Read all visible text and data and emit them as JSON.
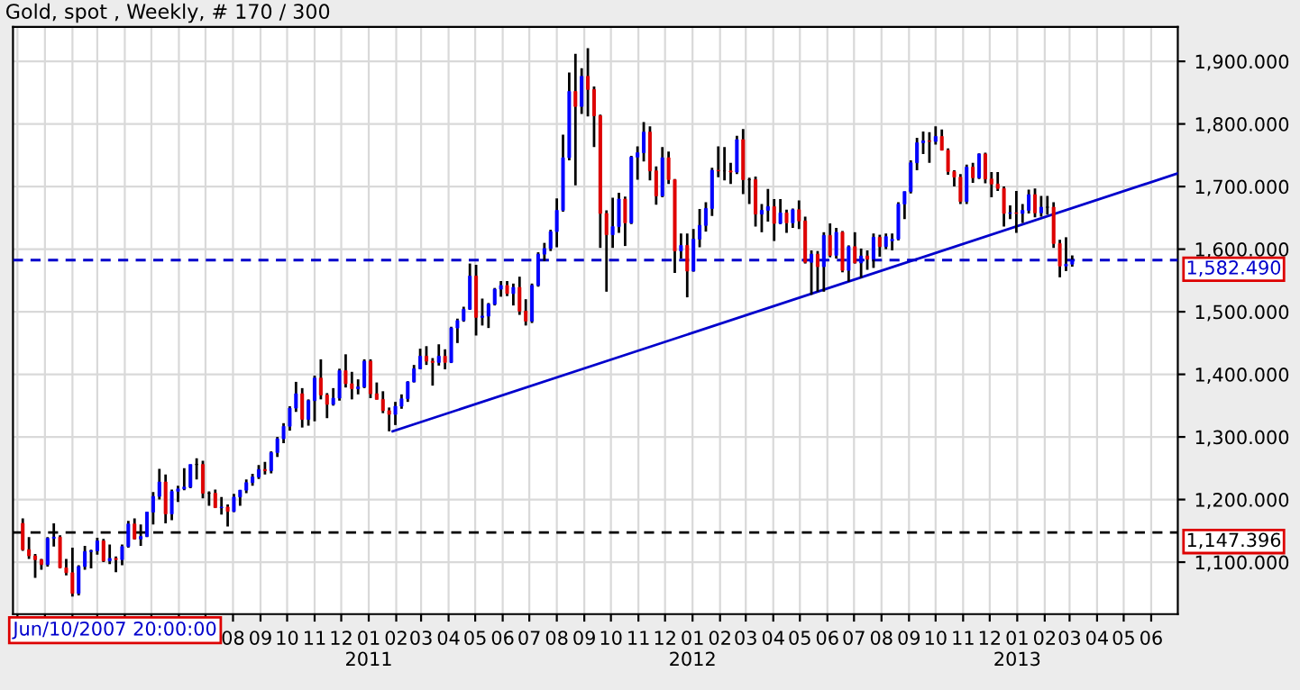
{
  "chart_data": {
    "type": "candlestick",
    "title": "Gold, spot , Weekly, # 170 / 300",
    "x": [
      "2009-12-07",
      "2009-12-14",
      "2009-12-21",
      "2009-12-28",
      "2010-01-04",
      "2010-01-11",
      "2010-01-18",
      "2010-01-25",
      "2010-02-01",
      "2010-02-08",
      "2010-02-15",
      "2010-02-22",
      "2010-03-01",
      "2010-03-08",
      "2010-03-15",
      "2010-03-22",
      "2010-03-29",
      "2010-04-05",
      "2010-04-12",
      "2010-04-19",
      "2010-04-26",
      "2010-05-03",
      "2010-05-10",
      "2010-05-17",
      "2010-05-24",
      "2010-05-31",
      "2010-06-07",
      "2010-06-14",
      "2010-06-21",
      "2010-06-28",
      "2010-07-05",
      "2010-07-12",
      "2010-07-19",
      "2010-07-26",
      "2010-08-02",
      "2010-08-09",
      "2010-08-16",
      "2010-08-23",
      "2010-08-30",
      "2010-09-06",
      "2010-09-13",
      "2010-09-20",
      "2010-09-27",
      "2010-10-04",
      "2010-10-11",
      "2010-10-18",
      "2010-10-25",
      "2010-11-01",
      "2010-11-08",
      "2010-11-15",
      "2010-11-22",
      "2010-11-29",
      "2010-12-06",
      "2010-12-13",
      "2010-12-20",
      "2010-12-27",
      "2011-01-03",
      "2011-01-10",
      "2011-01-17",
      "2011-01-24",
      "2011-01-31",
      "2011-02-07",
      "2011-02-14",
      "2011-02-21",
      "2011-02-28",
      "2011-03-07",
      "2011-03-14",
      "2011-03-21",
      "2011-03-28",
      "2011-04-04",
      "2011-04-11",
      "2011-04-18",
      "2011-04-25",
      "2011-05-02",
      "2011-05-09",
      "2011-05-16",
      "2011-05-23",
      "2011-05-30",
      "2011-06-06",
      "2011-06-13",
      "2011-06-20",
      "2011-06-27",
      "2011-07-04",
      "2011-07-11",
      "2011-07-18",
      "2011-07-25",
      "2011-08-01",
      "2011-08-08",
      "2011-08-15",
      "2011-08-22",
      "2011-08-29",
      "2011-09-05",
      "2011-09-12",
      "2011-09-19",
      "2011-09-26",
      "2011-10-03",
      "2011-10-10",
      "2011-10-17",
      "2011-10-24",
      "2011-10-31",
      "2011-11-07",
      "2011-11-14",
      "2011-11-21",
      "2011-11-28",
      "2011-12-05",
      "2011-12-12",
      "2011-12-19",
      "2011-12-26",
      "2012-01-02",
      "2012-01-09",
      "2012-01-16",
      "2012-01-23",
      "2012-01-30",
      "2012-02-06",
      "2012-02-13",
      "2012-02-20",
      "2012-02-27",
      "2012-03-05",
      "2012-03-12",
      "2012-03-19",
      "2012-03-26",
      "2012-04-02",
      "2012-04-09",
      "2012-04-16",
      "2012-04-23",
      "2012-04-30",
      "2012-05-07",
      "2012-05-14",
      "2012-05-21",
      "2012-05-28",
      "2012-06-04",
      "2012-06-11",
      "2012-06-18",
      "2012-06-25",
      "2012-07-02",
      "2012-07-09",
      "2012-07-16",
      "2012-07-23",
      "2012-07-30",
      "2012-08-06",
      "2012-08-13",
      "2012-08-20",
      "2012-08-27",
      "2012-09-03",
      "2012-09-10",
      "2012-09-17",
      "2012-09-24",
      "2012-10-01",
      "2012-10-08",
      "2012-10-15",
      "2012-10-22",
      "2012-10-29",
      "2012-11-05",
      "2012-11-12",
      "2012-11-19",
      "2012-11-26",
      "2012-12-03",
      "2012-12-10",
      "2012-12-17",
      "2012-12-24",
      "2012-12-31",
      "2013-01-07",
      "2013-01-14",
      "2013-01-21",
      "2013-01-28",
      "2013-02-04",
      "2013-02-11",
      "2013-02-18",
      "2013-02-25",
      "2013-03-04"
    ],
    "ohlc": [
      [
        1162,
        1170,
        1118,
        1120
      ],
      [
        1120,
        1140,
        1105,
        1110
      ],
      [
        1110,
        1113,
        1075,
        1104
      ],
      [
        1104,
        1105,
        1088,
        1096
      ],
      [
        1096,
        1140,
        1093,
        1138
      ],
      [
        1138,
        1162,
        1125,
        1140
      ],
      [
        1140,
        1143,
        1090,
        1091
      ],
      [
        1091,
        1105,
        1079,
        1083
      ],
      [
        1083,
        1123,
        1045,
        1050
      ],
      [
        1050,
        1095,
        1047,
        1093
      ],
      [
        1093,
        1126,
        1088,
        1117
      ],
      [
        1117,
        1120,
        1090,
        1118
      ],
      [
        1118,
        1139,
        1112,
        1134
      ],
      [
        1134,
        1137,
        1100,
        1102
      ],
      [
        1102,
        1128,
        1097,
        1106
      ],
      [
        1106,
        1109,
        1084,
        1104
      ],
      [
        1104,
        1128,
        1095,
        1125
      ],
      [
        1125,
        1166,
        1123,
        1161
      ],
      [
        1161,
        1170,
        1136,
        1137
      ],
      [
        1137,
        1160,
        1126,
        1141
      ],
      [
        1141,
        1180,
        1140,
        1180
      ],
      [
        1180,
        1212,
        1160,
        1205
      ],
      [
        1205,
        1249,
        1200,
        1228
      ],
      [
        1228,
        1240,
        1162,
        1177
      ],
      [
        1177,
        1216,
        1167,
        1213
      ],
      [
        1213,
        1222,
        1196,
        1217
      ],
      [
        1217,
        1250,
        1215,
        1220
      ],
      [
        1220,
        1256,
        1218,
        1256
      ],
      [
        1256,
        1266,
        1232,
        1256
      ],
      [
        1256,
        1262,
        1202,
        1210
      ],
      [
        1210,
        1213,
        1190,
        1210
      ],
      [
        1210,
        1216,
        1187,
        1187
      ],
      [
        1187,
        1204,
        1176,
        1188
      ],
      [
        1188,
        1192,
        1157,
        1181
      ],
      [
        1181,
        1209,
        1180,
        1204
      ],
      [
        1204,
        1215,
        1190,
        1215
      ],
      [
        1215,
        1232,
        1210,
        1227
      ],
      [
        1227,
        1241,
        1222,
        1236
      ],
      [
        1236,
        1255,
        1233,
        1248
      ],
      [
        1248,
        1260,
        1240,
        1246
      ],
      [
        1246,
        1277,
        1242,
        1275
      ],
      [
        1275,
        1300,
        1268,
        1297
      ],
      [
        1297,
        1322,
        1290,
        1317
      ],
      [
        1317,
        1349,
        1310,
        1346
      ],
      [
        1346,
        1388,
        1340,
        1369
      ],
      [
        1369,
        1378,
        1315,
        1328
      ],
      [
        1328,
        1360,
        1318,
        1358
      ],
      [
        1358,
        1398,
        1325,
        1394
      ],
      [
        1394,
        1424,
        1360,
        1367
      ],
      [
        1367,
        1370,
        1330,
        1352
      ],
      [
        1352,
        1378,
        1350,
        1362
      ],
      [
        1362,
        1409,
        1358,
        1406
      ],
      [
        1406,
        1432,
        1379,
        1385
      ],
      [
        1385,
        1404,
        1360,
        1377
      ],
      [
        1377,
        1392,
        1368,
        1380
      ],
      [
        1380,
        1424,
        1378,
        1421
      ],
      [
        1421,
        1424,
        1362,
        1369
      ],
      [
        1369,
        1387,
        1360,
        1360
      ],
      [
        1360,
        1373,
        1338,
        1342
      ],
      [
        1342,
        1347,
        1309,
        1336
      ],
      [
        1336,
        1356,
        1319,
        1349
      ],
      [
        1349,
        1368,
        1345,
        1361
      ],
      [
        1361,
        1389,
        1356,
        1388
      ],
      [
        1388,
        1415,
        1387,
        1409
      ],
      [
        1409,
        1441,
        1408,
        1429
      ],
      [
        1429,
        1445,
        1415,
        1421
      ],
      [
        1421,
        1426,
        1382,
        1419
      ],
      [
        1419,
        1448,
        1414,
        1429
      ],
      [
        1429,
        1440,
        1408,
        1419
      ],
      [
        1419,
        1476,
        1418,
        1474
      ],
      [
        1474,
        1489,
        1450,
        1486
      ],
      [
        1486,
        1508,
        1484,
        1504
      ],
      [
        1504,
        1577,
        1503,
        1557
      ],
      [
        1557,
        1575,
        1462,
        1491
      ],
      [
        1491,
        1521,
        1478,
        1493
      ],
      [
        1493,
        1514,
        1474,
        1512
      ],
      [
        1512,
        1538,
        1510,
        1536
      ],
      [
        1536,
        1549,
        1524,
        1542
      ],
      [
        1542,
        1549,
        1525,
        1529
      ],
      [
        1529,
        1545,
        1510,
        1539
      ],
      [
        1539,
        1556,
        1495,
        1501
      ],
      [
        1501,
        1520,
        1478,
        1485
      ],
      [
        1485,
        1545,
        1482,
        1542
      ],
      [
        1542,
        1595,
        1540,
        1592
      ],
      [
        1592,
        1610,
        1581,
        1601
      ],
      [
        1601,
        1631,
        1597,
        1628
      ],
      [
        1628,
        1681,
        1603,
        1662
      ],
      [
        1662,
        1783,
        1660,
        1746
      ],
      [
        1746,
        1882,
        1742,
        1852
      ],
      [
        1852,
        1912,
        1702,
        1828
      ],
      [
        1828,
        1889,
        1816,
        1876
      ],
      [
        1876,
        1921,
        1812,
        1855
      ],
      [
        1855,
        1860,
        1763,
        1813
      ],
      [
        1813,
        1815,
        1602,
        1657
      ],
      [
        1657,
        1662,
        1532,
        1623
      ],
      [
        1623,
        1682,
        1602,
        1636
      ],
      [
        1636,
        1690,
        1626,
        1680
      ],
      [
        1680,
        1684,
        1605,
        1642
      ],
      [
        1642,
        1749,
        1640,
        1747
      ],
      [
        1747,
        1764,
        1711,
        1754
      ],
      [
        1754,
        1803,
        1740,
        1787
      ],
      [
        1787,
        1796,
        1710,
        1725
      ],
      [
        1725,
        1732,
        1671,
        1685
      ],
      [
        1685,
        1763,
        1683,
        1746
      ],
      [
        1746,
        1756,
        1704,
        1711
      ],
      [
        1711,
        1712,
        1562,
        1597
      ],
      [
        1597,
        1625,
        1585,
        1606
      ],
      [
        1606,
        1625,
        1523,
        1565
      ],
      [
        1565,
        1632,
        1564,
        1616
      ],
      [
        1616,
        1664,
        1603,
        1638
      ],
      [
        1638,
        1675,
        1628,
        1665
      ],
      [
        1665,
        1730,
        1653,
        1726
      ],
      [
        1726,
        1764,
        1715,
        1725
      ],
      [
        1725,
        1763,
        1710,
        1725
      ],
      [
        1725,
        1738,
        1704,
        1723
      ],
      [
        1723,
        1781,
        1720,
        1775
      ],
      [
        1775,
        1792,
        1688,
        1711
      ],
      [
        1711,
        1714,
        1672,
        1711
      ],
      [
        1711,
        1716,
        1636,
        1656
      ],
      [
        1656,
        1672,
        1627,
        1662
      ],
      [
        1662,
        1696,
        1644,
        1668
      ],
      [
        1668,
        1680,
        1613,
        1641
      ],
      [
        1641,
        1680,
        1640,
        1658
      ],
      [
        1658,
        1663,
        1626,
        1642
      ],
      [
        1642,
        1665,
        1634,
        1663
      ],
      [
        1663,
        1678,
        1632,
        1645
      ],
      [
        1645,
        1652,
        1577,
        1579
      ],
      [
        1579,
        1598,
        1527,
        1592
      ],
      [
        1592,
        1597,
        1532,
        1572
      ],
      [
        1572,
        1627,
        1532,
        1622
      ],
      [
        1622,
        1641,
        1587,
        1590
      ],
      [
        1590,
        1634,
        1585,
        1627
      ],
      [
        1627,
        1629,
        1563,
        1566
      ],
      [
        1566,
        1606,
        1548,
        1604
      ],
      [
        1604,
        1627,
        1577,
        1578
      ],
      [
        1578,
        1601,
        1554,
        1589
      ],
      [
        1589,
        1598,
        1567,
        1584
      ],
      [
        1584,
        1625,
        1570,
        1619
      ],
      [
        1619,
        1623,
        1588,
        1604
      ],
      [
        1604,
        1625,
        1600,
        1620
      ],
      [
        1613,
        1625,
        1598,
        1616
      ],
      [
        1616,
        1675,
        1614,
        1672
      ],
      [
        1672,
        1692,
        1648,
        1692
      ],
      [
        1692,
        1742,
        1689,
        1738
      ],
      [
        1738,
        1778,
        1726,
        1770
      ],
      [
        1770,
        1788,
        1752,
        1773
      ],
      [
        1773,
        1787,
        1738,
        1772
      ],
      [
        1772,
        1796,
        1767,
        1780
      ],
      [
        1780,
        1791,
        1758,
        1758
      ],
      [
        1758,
        1761,
        1719,
        1724
      ],
      [
        1724,
        1726,
        1700,
        1715
      ],
      [
        1715,
        1720,
        1672,
        1676
      ],
      [
        1676,
        1735,
        1672,
        1731
      ],
      [
        1731,
        1738,
        1706,
        1714
      ],
      [
        1714,
        1753,
        1712,
        1752
      ],
      [
        1752,
        1754,
        1705,
        1712
      ],
      [
        1712,
        1723,
        1683,
        1704
      ],
      [
        1704,
        1723,
        1693,
        1697
      ],
      [
        1697,
        1700,
        1636,
        1657
      ],
      [
        1657,
        1670,
        1648,
        1658
      ],
      [
        1658,
        1693,
        1626,
        1657
      ],
      [
        1657,
        1672,
        1642,
        1662
      ],
      [
        1662,
        1695,
        1657,
        1687
      ],
      [
        1687,
        1697,
        1651,
        1658
      ],
      [
        1658,
        1685,
        1652,
        1667
      ],
      [
        1667,
        1685,
        1655,
        1667
      ],
      [
        1667,
        1675,
        1602,
        1609
      ],
      [
        1609,
        1615,
        1555,
        1573
      ],
      [
        1573,
        1619,
        1565,
        1576
      ],
      [
        1576,
        1590,
        1572,
        1582.49
      ]
    ],
    "series": [
      {
        "type": "line",
        "color": "#0000cc",
        "x": [
          "2011-01-28",
          "2013-07-01"
        ],
        "values": [
          1309,
          1721
        ]
      }
    ],
    "ylim": [
      1017,
      1955
    ],
    "yticks": [
      {
        "value": 1100,
        "label": "1,100.000"
      },
      {
        "value": 1200,
        "label": "1,200.000"
      },
      {
        "value": 1300,
        "label": "1,300.000"
      },
      {
        "value": 1400,
        "label": "1,400.000"
      },
      {
        "value": 1500,
        "label": "1,500.000"
      },
      {
        "value": 1600,
        "label": "1,600.000"
      },
      {
        "value": 1700,
        "label": "1,700.000"
      },
      {
        "value": 1800,
        "label": "1,800.000"
      },
      {
        "value": 1900,
        "label": "1,900.000"
      }
    ],
    "xlim": [
      "2009-11-26",
      "2013-07-01"
    ],
    "xticks": [
      {
        "value": "2009-12-01",
        "label": null
      },
      {
        "value": "2010-01-01",
        "label": null
      },
      {
        "value": "2010-02-01",
        "label": null
      },
      {
        "value": "2010-03-01",
        "label": null
      },
      {
        "value": "2010-04-01",
        "label": null
      },
      {
        "value": "2010-05-01",
        "label": null
      },
      {
        "value": "2010-06-01",
        "label": null
      },
      {
        "value": "2010-07-01",
        "label": null
      },
      {
        "value": "2010-08-01",
        "label": "08"
      },
      {
        "value": "2010-09-01",
        "label": "09"
      },
      {
        "value": "2010-10-01",
        "label": "10"
      },
      {
        "value": "2010-11-01",
        "label": "11"
      },
      {
        "value": "2010-12-01",
        "label": "12"
      },
      {
        "value": "2011-01-01",
        "label": "01\n2011"
      },
      {
        "value": "2011-02-01",
        "label": "02"
      },
      {
        "value": "2011-03-01",
        "label": "03"
      },
      {
        "value": "2011-04-01",
        "label": "04"
      },
      {
        "value": "2011-05-01",
        "label": "05"
      },
      {
        "value": "2011-06-01",
        "label": "06"
      },
      {
        "value": "2011-07-01",
        "label": "07"
      },
      {
        "value": "2011-08-01",
        "label": "08"
      },
      {
        "value": "2011-09-01",
        "label": "09"
      },
      {
        "value": "2011-10-01",
        "label": "10"
      },
      {
        "value": "2011-11-01",
        "label": "11"
      },
      {
        "value": "2011-12-01",
        "label": "12"
      },
      {
        "value": "2012-01-01",
        "label": "01\n2012"
      },
      {
        "value": "2012-02-01",
        "label": "02"
      },
      {
        "value": "2012-03-01",
        "label": "03"
      },
      {
        "value": "2012-04-01",
        "label": "04"
      },
      {
        "value": "2012-05-01",
        "label": "05"
      },
      {
        "value": "2012-06-01",
        "label": "06"
      },
      {
        "value": "2012-07-01",
        "label": "07"
      },
      {
        "value": "2012-08-01",
        "label": "08"
      },
      {
        "value": "2012-09-01",
        "label": "09"
      },
      {
        "value": "2012-10-01",
        "label": "10"
      },
      {
        "value": "2012-11-01",
        "label": "11"
      },
      {
        "value": "2012-12-01",
        "label": "12"
      },
      {
        "value": "2013-01-01",
        "label": "01\n2013"
      },
      {
        "value": "2013-02-01",
        "label": "02"
      },
      {
        "value": "2013-03-01",
        "label": "03"
      },
      {
        "value": "2013-04-01",
        "label": "04"
      },
      {
        "value": "2013-05-01",
        "label": "05"
      },
      {
        "value": "2013-06-01",
        "label": "06"
      }
    ],
    "ref_lines": [
      {
        "axis": "y",
        "value": 1582.49,
        "label": "1,582.490",
        "color": "#0000cc",
        "line_style": "dashed"
      },
      {
        "axis": "y",
        "value": 1147.396,
        "label": "1,147.396",
        "color": "#000000",
        "line_style": "dashed"
      }
    ],
    "annotations": [
      "Jun/10/2007 20:00:00"
    ],
    "grid": true
  }
}
